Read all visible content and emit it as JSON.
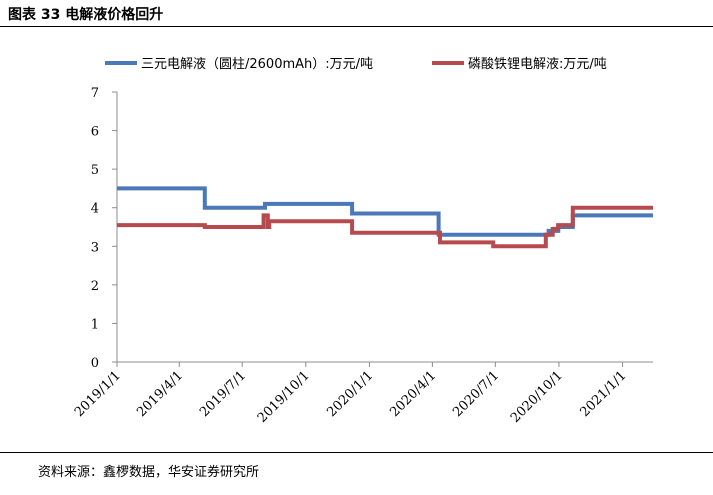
{
  "figure_label": "图表 33  电解液价格回升",
  "source": "资料来源：鑫椤数据，华安证券研究所",
  "chart_data": {
    "type": "line",
    "title": "",
    "xlabel": "",
    "ylabel": "",
    "ylim": [
      0,
      7
    ],
    "yticks": [
      0,
      1,
      2,
      3,
      4,
      5,
      6,
      7
    ],
    "x_range": [
      "2019-01-01",
      "2021-02-14"
    ],
    "x_tick_dates": [
      "2019-01-01",
      "2019-04-01",
      "2019-07-01",
      "2019-10-01",
      "2020-01-01",
      "2020-04-01",
      "2020-07-01",
      "2020-10-01",
      "2021-01-01"
    ],
    "x_tick_labels": [
      "2019/1/1",
      "2019/4/1",
      "2019/7/1",
      "2019/10/1",
      "2020/1/1",
      "2020/4/1",
      "2020/7/1",
      "2020/10/1",
      "2021/1/1"
    ],
    "grid": false,
    "legend_position": "top",
    "series": [
      {
        "name": "三元电解液（圆柱/2600mAh）:万元/吨",
        "color": "#4a78b8",
        "points": [
          [
            "2019-01-01",
            4.5
          ],
          [
            "2019-05-08",
            4.5
          ],
          [
            "2019-05-08",
            4.0
          ],
          [
            "2019-08-03",
            4.0
          ],
          [
            "2019-08-03",
            4.1
          ],
          [
            "2019-12-07",
            4.1
          ],
          [
            "2019-12-07",
            3.85
          ],
          [
            "2020-04-10",
            3.85
          ],
          [
            "2020-04-10",
            3.3
          ],
          [
            "2020-09-16",
            3.3
          ],
          [
            "2020-09-16",
            3.4
          ],
          [
            "2020-09-30",
            3.4
          ],
          [
            "2020-09-30",
            3.5
          ],
          [
            "2020-10-21",
            3.5
          ],
          [
            "2020-10-21",
            3.8
          ],
          [
            "2021-02-14",
            3.8
          ]
        ]
      },
      {
        "name": "磷酸铁锂电解液:万元/吨",
        "color": "#b64a4e",
        "points": [
          [
            "2019-01-01",
            3.55
          ],
          [
            "2019-05-08",
            3.55
          ],
          [
            "2019-05-08",
            3.5
          ],
          [
            "2019-08-01",
            3.5
          ],
          [
            "2019-08-01",
            3.8
          ],
          [
            "2019-08-07",
            3.8
          ],
          [
            "2019-08-07",
            3.5
          ],
          [
            "2019-08-09",
            3.5
          ],
          [
            "2019-08-09",
            3.65
          ],
          [
            "2019-12-07",
            3.65
          ],
          [
            "2019-12-07",
            3.35
          ],
          [
            "2020-04-12",
            3.35
          ],
          [
            "2020-04-12",
            3.1
          ],
          [
            "2020-06-28",
            3.1
          ],
          [
            "2020-06-28",
            3.0
          ],
          [
            "2020-09-12",
            3.0
          ],
          [
            "2020-09-12",
            3.3
          ],
          [
            "2020-09-22",
            3.3
          ],
          [
            "2020-09-22",
            3.45
          ],
          [
            "2020-09-30",
            3.45
          ],
          [
            "2020-09-30",
            3.55
          ],
          [
            "2020-10-21",
            3.55
          ],
          [
            "2020-10-21",
            4.0
          ],
          [
            "2021-02-14",
            4.0
          ]
        ]
      }
    ]
  }
}
